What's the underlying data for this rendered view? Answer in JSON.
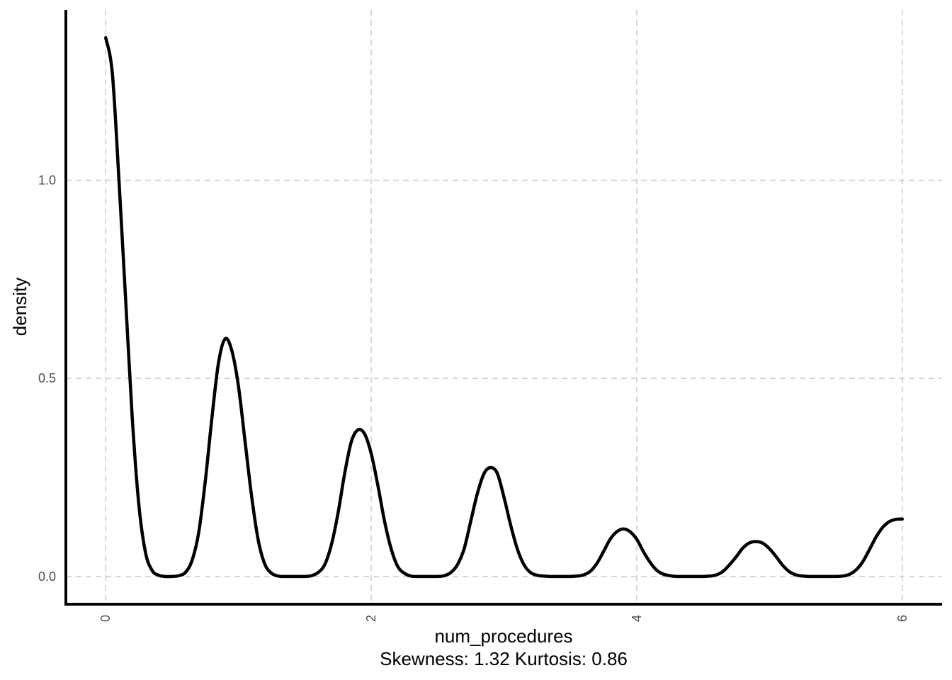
{
  "chart_data": {
    "type": "line",
    "xlabel": "num_procedures",
    "subtitle": "Skewness: 1.32 Kurtosis: 0.86",
    "ylabel": "density",
    "xlim": [
      -0.3,
      6.3
    ],
    "ylim": [
      -0.07,
      1.43
    ],
    "x_ticks": [
      0,
      2,
      4,
      6
    ],
    "x_tick_labels": [
      "0",
      "2",
      "4",
      "6"
    ],
    "y_ticks": [
      0.0,
      0.5,
      1.0
    ],
    "y_tick_labels": [
      "0.0",
      "0.5",
      "1.0"
    ],
    "grid": true,
    "grid_style": "dashed",
    "line_color": "#000000",
    "series": [
      {
        "x": [
          0.0,
          0.05,
          0.1,
          0.15,
          0.2,
          0.25,
          0.3,
          0.35,
          0.4,
          0.45,
          0.5,
          0.55,
          0.6,
          0.65,
          0.7,
          0.75,
          0.8,
          0.85,
          0.9,
          0.95,
          1.0,
          1.05,
          1.1,
          1.15,
          1.2,
          1.25,
          1.3,
          1.35,
          1.4,
          1.45,
          1.5,
          1.55,
          1.6,
          1.65,
          1.7,
          1.75,
          1.8,
          1.85,
          1.9,
          1.95,
          2.0,
          2.05,
          2.1,
          2.15,
          2.2,
          2.25,
          2.3,
          2.35,
          2.4,
          2.45,
          2.5,
          2.55,
          2.6,
          2.65,
          2.7,
          2.75,
          2.8,
          2.85,
          2.9,
          2.95,
          3.0,
          3.05,
          3.1,
          3.15,
          3.2,
          3.25,
          3.3,
          3.35,
          3.4,
          3.45,
          3.5,
          3.55,
          3.6,
          3.65,
          3.7,
          3.75,
          3.8,
          3.85,
          3.9,
          3.95,
          4.0,
          4.05,
          4.1,
          4.15,
          4.2,
          4.25,
          4.3,
          4.35,
          4.4,
          4.45,
          4.5,
          4.55,
          4.6,
          4.65,
          4.7,
          4.75,
          4.8,
          4.85,
          4.9,
          4.95,
          5.0,
          5.05,
          5.1,
          5.15,
          5.2,
          5.25,
          5.3,
          5.35,
          5.4,
          5.45,
          5.5,
          5.55,
          5.6,
          5.65,
          5.7,
          5.75,
          5.8,
          5.85,
          5.9,
          5.95,
          6.0
        ],
        "y": [
          1.36,
          1.27,
          1.0,
          0.7,
          0.4,
          0.18,
          0.06,
          0.015,
          0.003,
          0.0,
          0.0,
          0.002,
          0.01,
          0.04,
          0.11,
          0.24,
          0.4,
          0.54,
          0.6,
          0.57,
          0.48,
          0.34,
          0.2,
          0.09,
          0.03,
          0.008,
          0.001,
          0.0,
          0.0,
          0.0,
          0.0,
          0.002,
          0.01,
          0.03,
          0.08,
          0.16,
          0.26,
          0.34,
          0.37,
          0.36,
          0.31,
          0.23,
          0.14,
          0.07,
          0.025,
          0.008,
          0.001,
          0.0,
          0.0,
          0.0,
          0.0,
          0.002,
          0.01,
          0.03,
          0.07,
          0.14,
          0.21,
          0.26,
          0.275,
          0.26,
          0.2,
          0.13,
          0.07,
          0.03,
          0.01,
          0.003,
          0.001,
          0.0,
          0.0,
          0.0,
          0.0,
          0.001,
          0.004,
          0.013,
          0.033,
          0.063,
          0.094,
          0.113,
          0.12,
          0.113,
          0.094,
          0.063,
          0.036,
          0.016,
          0.006,
          0.002,
          0.0,
          0.0,
          0.0,
          0.0,
          0.0,
          0.001,
          0.004,
          0.013,
          0.03,
          0.05,
          0.072,
          0.085,
          0.088,
          0.084,
          0.07,
          0.05,
          0.028,
          0.012,
          0.004,
          0.001,
          0.0,
          0.0,
          0.0,
          0.0,
          0.0,
          0.001,
          0.005,
          0.016,
          0.036,
          0.066,
          0.098,
          0.123,
          0.138,
          0.144,
          0.145
        ]
      }
    ]
  }
}
